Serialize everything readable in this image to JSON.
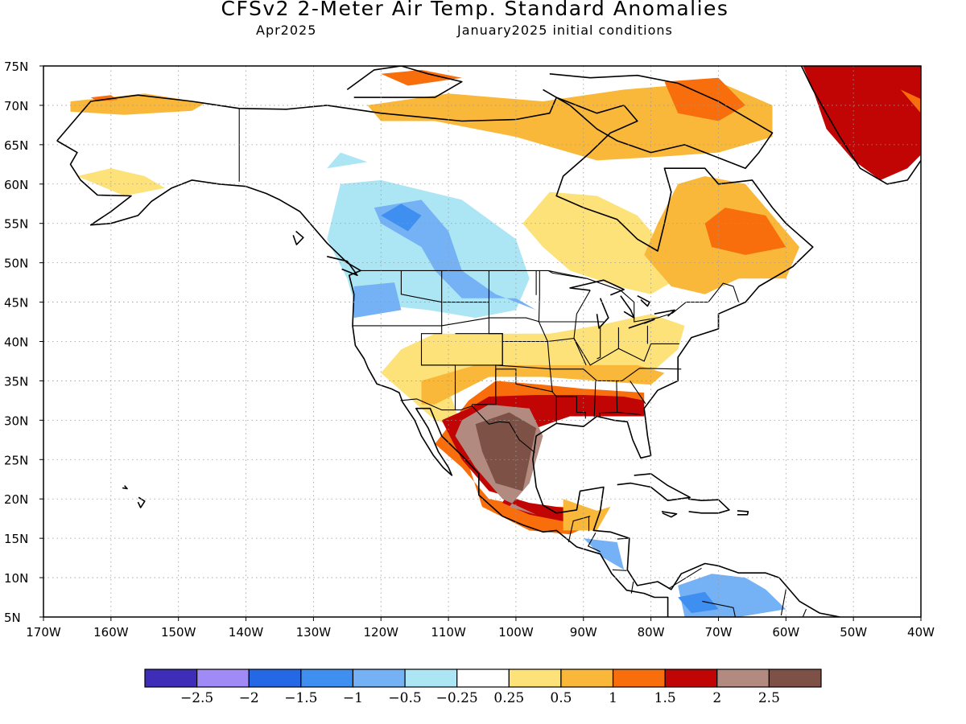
{
  "header": {
    "title": "CFSv2 2-Meter Air Temp. Standard Anomalies",
    "valid_month": "Apr2025",
    "init": "January2025 initial conditions"
  },
  "map": {
    "lat_labels": [
      "75N",
      "70N",
      "65N",
      "60N",
      "55N",
      "50N",
      "45N",
      "40N",
      "35N",
      "30N",
      "25N",
      "20N",
      "15N",
      "10N",
      "5N"
    ],
    "lon_labels": [
      "170W",
      "160W",
      "150W",
      "140W",
      "130W",
      "120W",
      "110W",
      "100W",
      "90W",
      "80W",
      "70W",
      "60W",
      "50W",
      "40W"
    ],
    "lat_range": [
      5,
      75
    ],
    "lon_range": [
      -170,
      -40
    ],
    "grid": "dotted"
  },
  "colorbar": {
    "labels": [
      "-2.5",
      "-2",
      "-1.5",
      "-1",
      "-0.5",
      "-0.25",
      "0.25",
      "0.5",
      "1",
      "1.5",
      "2",
      "2.5"
    ],
    "colors": [
      "#3d2db8",
      "#a08af5",
      "#2468e6",
      "#3f8ff0",
      "#74b2f5",
      "#ace6f5",
      "#ffffff",
      "#fde27a",
      "#f9b83a",
      "#f86d0c",
      "#c10404",
      "#b28a80",
      "#7d5145"
    ]
  }
}
